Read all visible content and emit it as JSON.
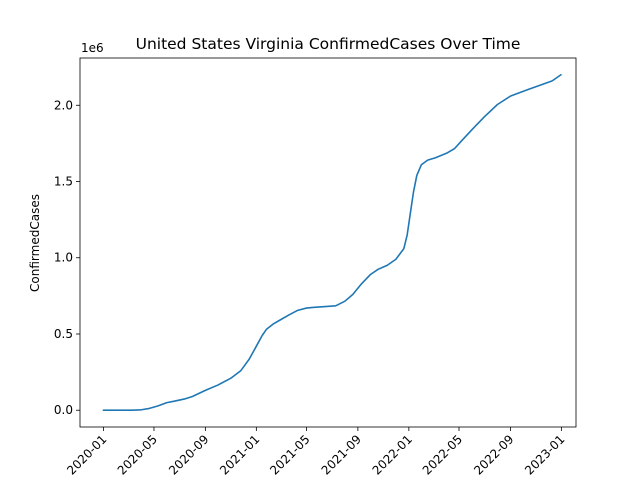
{
  "chart_data": {
    "type": "line",
    "title": "United States Virginia ConfirmedCases Over Time",
    "xlabel": "",
    "ylabel": "ConfirmedCases",
    "y_offset_label": "1e6",
    "y_scale": 1000000,
    "xlim": [
      "2019-11-06",
      "2023-02-05"
    ],
    "ylim": [
      -110000,
      2310000
    ],
    "x_ticks": [
      {
        "date": "2020-01-01",
        "label": "2020-01"
      },
      {
        "date": "2020-05-01",
        "label": "2020-05"
      },
      {
        "date": "2020-09-01",
        "label": "2020-09"
      },
      {
        "date": "2021-01-01",
        "label": "2021-01"
      },
      {
        "date": "2021-05-01",
        "label": "2021-05"
      },
      {
        "date": "2021-09-01",
        "label": "2021-09"
      },
      {
        "date": "2022-01-01",
        "label": "2022-01"
      },
      {
        "date": "2022-05-01",
        "label": "2022-05"
      },
      {
        "date": "2022-09-01",
        "label": "2022-09"
      },
      {
        "date": "2023-01-01",
        "label": "2023-01"
      }
    ],
    "y_ticks": [
      {
        "value": 0,
        "label": "0.0"
      },
      {
        "value": 500000,
        "label": "0.5"
      },
      {
        "value": 1000000,
        "label": "1.0"
      },
      {
        "value": 1500000,
        "label": "1.5"
      },
      {
        "value": 2000000,
        "label": "2.0"
      }
    ],
    "grid": false,
    "legend": "none",
    "line_color": "#1f77b4",
    "series": [
      {
        "x": [
          "2020-01-01",
          "2020-02-15",
          "2020-03-10",
          "2020-04-01",
          "2020-04-20",
          "2020-05-10",
          "2020-06-01",
          "2020-06-20",
          "2020-07-15",
          "2020-08-01",
          "2020-09-01",
          "2020-10-01",
          "2020-11-01",
          "2020-11-25",
          "2020-12-15",
          "2021-01-01",
          "2021-01-15",
          "2021-01-25",
          "2021-02-10",
          "2021-03-01",
          "2021-03-20",
          "2021-04-10",
          "2021-05-01",
          "2021-05-20",
          "2021-06-15",
          "2021-07-10",
          "2021-08-01",
          "2021-08-20",
          "2021-09-10",
          "2021-10-01",
          "2021-10-20",
          "2021-11-10",
          "2021-12-01",
          "2021-12-20",
          "2021-12-28",
          "2022-01-05",
          "2022-01-12",
          "2022-01-20",
          "2022-01-31",
          "2022-02-15",
          "2022-03-05",
          "2022-04-01",
          "2022-04-20",
          "2022-05-10",
          "2022-06-01",
          "2022-07-01",
          "2022-08-01",
          "2022-09-01",
          "2022-09-20",
          "2022-10-15",
          "2022-11-15",
          "2022-12-10",
          "2022-12-31"
        ],
        "y": [
          0,
          0,
          500,
          3000,
          12000,
          28000,
          50000,
          60000,
          75000,
          90000,
          130000,
          165000,
          210000,
          260000,
          335000,
          420000,
          490000,
          530000,
          565000,
          595000,
          625000,
          655000,
          670000,
          675000,
          680000,
          685000,
          715000,
          760000,
          830000,
          890000,
          925000,
          950000,
          990000,
          1060000,
          1150000,
          1300000,
          1430000,
          1540000,
          1610000,
          1640000,
          1655000,
          1685000,
          1715000,
          1775000,
          1840000,
          1925000,
          2005000,
          2060000,
          2080000,
          2105000,
          2135000,
          2160000,
          2200000
        ]
      }
    ]
  }
}
